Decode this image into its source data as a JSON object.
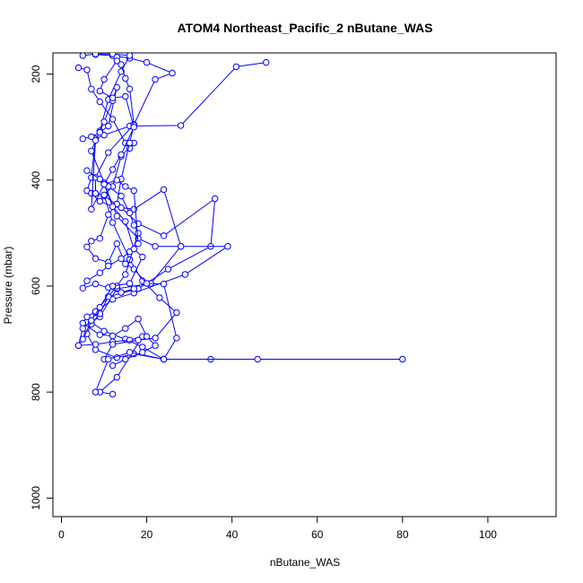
{
  "chart_data": {
    "type": "scatter",
    "title": "ATOM4 Northeast_Pacific_2 nButane_WAS",
    "xlabel": "nButane_WAS",
    "ylabel": "Pressure (mbar)",
    "xlim": [
      -2,
      116
    ],
    "ylim": [
      1035,
      160
    ],
    "y_reversed": true,
    "x_ticks": [
      0,
      20,
      40,
      60,
      80,
      100
    ],
    "y_ticks": [
      200,
      400,
      600,
      800,
      1000
    ],
    "grid": false,
    "legend": "none",
    "series_color": "#0000ff",
    "marker": "open-circle",
    "profiles": [
      {
        "x": [
          48,
          41,
          28,
          16,
          10,
          8,
          7,
          6,
          7,
          9,
          12,
          17,
          24,
          28,
          21,
          13,
          9,
          7,
          10,
          15,
          19,
          24,
          35,
          80
        ],
        "y": [
          178,
          186,
          297,
          298,
          315,
          322,
          395,
          420,
          425,
          440,
          450,
          455,
          418,
          525,
          595,
          605,
          658,
          668,
          685,
          700,
          715,
          738,
          738,
          738
        ]
      },
      {
        "x": [
          8,
          12,
          16,
          20,
          26,
          22,
          17,
          11,
          8,
          8,
          10,
          14,
          18,
          24,
          36,
          35,
          25,
          18,
          11,
          9,
          7,
          6,
          8,
          13,
          17,
          24,
          46
        ],
        "y": [
          163,
          165,
          170,
          178,
          198,
          210,
          295,
          348,
          395,
          425,
          430,
          452,
          482,
          505,
          435,
          525,
          568,
          605,
          620,
          652,
          672,
          690,
          720,
          735,
          728,
          738,
          738
        ]
      },
      {
        "x": [
          5,
          8,
          12,
          16,
          14,
          11,
          9,
          7,
          10,
          13,
          18,
          22,
          28,
          39,
          29,
          17,
          12,
          8,
          5,
          4,
          8,
          12,
          16,
          19,
          13,
          9,
          12
        ],
        "y": [
          165,
          162,
          162,
          165,
          195,
          248,
          307,
          345,
          405,
          468,
          510,
          525,
          525,
          525,
          578,
          613,
          625,
          650,
          700,
          712,
          710,
          705,
          702,
          695,
          772,
          800,
          804
        ]
      },
      {
        "x": [
          4,
          6,
          7,
          9,
          12,
          15,
          16,
          17,
          14,
          12,
          10,
          12,
          16,
          19,
          23,
          27,
          22,
          18,
          12,
          10
        ],
        "y": [
          188,
          192,
          228,
          252,
          285,
          330,
          340,
          330,
          355,
          412,
          428,
          480,
          550,
          590,
          622,
          650,
          698,
          702,
          710,
          738
        ]
      },
      {
        "x": [
          13,
          14,
          15,
          16,
          17,
          16,
          14,
          13,
          11,
          9,
          7,
          6,
          8,
          11,
          13,
          15,
          17,
          20,
          24,
          27,
          24,
          16,
          11,
          8
        ],
        "y": [
          168,
          182,
          208,
          228,
          296,
          330,
          398,
          445,
          465,
          510,
          515,
          526,
          548,
          555,
          520,
          558,
          568,
          595,
          596,
          698,
          738,
          725,
          738,
          800
        ]
      },
      {
        "x": [
          6,
          9,
          11,
          14,
          16,
          17,
          18,
          15,
          13,
          11,
          8,
          6,
          5,
          9,
          12,
          15,
          18,
          20,
          22,
          19,
          15,
          12
        ],
        "y": [
          382,
          398,
          412,
          430,
          462,
          485,
          500,
          578,
          600,
          620,
          648,
          658,
          670,
          692,
          694,
          680,
          662,
          695,
          712,
          725,
          738,
          750
        ]
      },
      {
        "x": [
          5,
          7,
          9,
          11,
          13,
          12,
          10,
          8,
          7,
          10,
          13,
          15,
          17,
          18,
          16,
          14,
          11,
          9,
          6,
          5,
          8,
          11,
          14,
          17
        ],
        "y": [
          322,
          318,
          310,
          298,
          225,
          250,
          290,
          325,
          455,
          408,
          400,
          412,
          420,
          520,
          535,
          548,
          562,
          575,
          590,
          604,
          596,
          603,
          612,
          605
        ]
      },
      {
        "x": [
          13,
          10,
          9,
          12,
          15,
          17,
          14,
          12,
          10,
          12,
          15,
          17,
          19,
          16,
          12,
          9,
          7,
          5,
          4
        ],
        "y": [
          175,
          210,
          232,
          245,
          242,
          300,
          352,
          380,
          408,
          450,
          478,
          530,
          545,
          595,
          600,
          640,
          665,
          680,
          712
        ]
      }
    ]
  }
}
